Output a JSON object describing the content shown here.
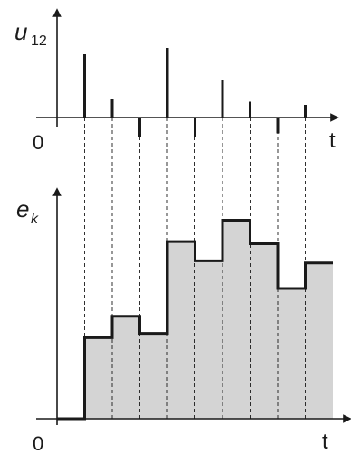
{
  "top_plot": {
    "ylabel": "u",
    "ylabel_sub": "12",
    "xlabel": "t",
    "origin": "0",
    "pulses": [
      {
        "t": 1,
        "amplitude": 1.0
      },
      {
        "t": 2,
        "amplitude": 0.3
      },
      {
        "t": 3,
        "amplitude": -0.3
      },
      {
        "t": 4,
        "amplitude": 1.1
      },
      {
        "t": 5,
        "amplitude": -0.3
      },
      {
        "t": 6,
        "amplitude": 0.6
      },
      {
        "t": 7,
        "amplitude": 0.25
      },
      {
        "t": 8,
        "amplitude": -0.25
      },
      {
        "t": 9,
        "amplitude": 0.2
      }
    ]
  },
  "bottom_plot": {
    "ylabel": "e",
    "ylabel_sub": "k",
    "xlabel": "t",
    "origin": "0",
    "steps": [
      {
        "t_start": 0,
        "t_end": 1,
        "level": 0
      },
      {
        "t_start": 1,
        "t_end": 2,
        "level": 0.38
      },
      {
        "t_start": 2,
        "t_end": 3,
        "level": 0.48
      },
      {
        "t_start": 3,
        "t_end": 4,
        "level": 0.4
      },
      {
        "t_start": 4,
        "t_end": 5,
        "level": 0.83
      },
      {
        "t_start": 5,
        "t_end": 6,
        "level": 0.74
      },
      {
        "t_start": 6,
        "t_end": 7,
        "level": 0.93
      },
      {
        "t_start": 7,
        "t_end": 8,
        "level": 0.82
      },
      {
        "t_start": 8,
        "t_end": 9,
        "level": 0.61
      },
      {
        "t_start": 9,
        "t_end": 10,
        "level": 0.73
      }
    ]
  },
  "colors": {
    "stroke": "#1a1a1a",
    "fill": "#d4d4d4",
    "dash": "#1a1a1a"
  }
}
